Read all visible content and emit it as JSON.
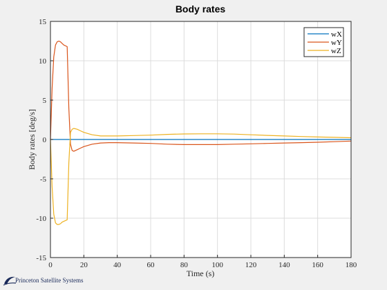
{
  "chart_data": {
    "type": "line",
    "title": "Body rates",
    "xlabel": "Time (s)",
    "ylabel": "Body rates [deg/s]",
    "xlim": [
      0,
      180
    ],
    "ylim": [
      -15,
      15
    ],
    "xticks": [
      0,
      20,
      40,
      60,
      80,
      100,
      120,
      140,
      160,
      180
    ],
    "yticks": [
      -15,
      -10,
      -5,
      0,
      5,
      10,
      15
    ],
    "grid": true,
    "legend_position": "top-right",
    "series": [
      {
        "name": "wX",
        "color": "#0072bd",
        "x": [
          0,
          180
        ],
        "y": [
          0,
          0
        ]
      },
      {
        "name": "wY",
        "color": "#d95319",
        "x": [
          0,
          1,
          2,
          3,
          4,
          5,
          6,
          7,
          8,
          10,
          11,
          12,
          13,
          14,
          16,
          18,
          20,
          25,
          30,
          35,
          40,
          50,
          60,
          70,
          80,
          90,
          100,
          110,
          120,
          130,
          140,
          150,
          160,
          170,
          180
        ],
        "y": [
          0,
          6.5,
          10.5,
          12.0,
          12.4,
          12.5,
          12.4,
          12.2,
          12.0,
          11.8,
          4.0,
          -0.6,
          -1.4,
          -1.5,
          -1.3,
          -1.1,
          -0.9,
          -0.6,
          -0.45,
          -0.4,
          -0.4,
          -0.45,
          -0.5,
          -0.6,
          -0.65,
          -0.65,
          -0.65,
          -0.6,
          -0.55,
          -0.5,
          -0.45,
          -0.4,
          -0.35,
          -0.28,
          -0.2
        ]
      },
      {
        "name": "wZ",
        "color": "#edb120",
        "x": [
          0,
          1,
          2,
          3,
          4,
          5,
          6,
          7,
          8,
          10,
          11,
          12,
          13,
          14,
          16,
          18,
          20,
          25,
          30,
          35,
          40,
          50,
          60,
          70,
          80,
          90,
          100,
          110,
          120,
          130,
          140,
          150,
          160,
          170,
          180
        ],
        "y": [
          0,
          -6.0,
          -9.5,
          -10.6,
          -10.8,
          -10.8,
          -10.7,
          -10.5,
          -10.4,
          -10.2,
          -3.0,
          0.9,
          1.3,
          1.4,
          1.3,
          1.1,
          0.9,
          0.6,
          0.45,
          0.45,
          0.45,
          0.5,
          0.55,
          0.65,
          0.7,
          0.72,
          0.72,
          0.68,
          0.6,
          0.52,
          0.45,
          0.38,
          0.32,
          0.27,
          0.22
        ]
      }
    ]
  },
  "logo": {
    "text": "Princeton Satellite Systems",
    "icon": "pss-swoosh-logo",
    "color": "#1a2a5a"
  }
}
